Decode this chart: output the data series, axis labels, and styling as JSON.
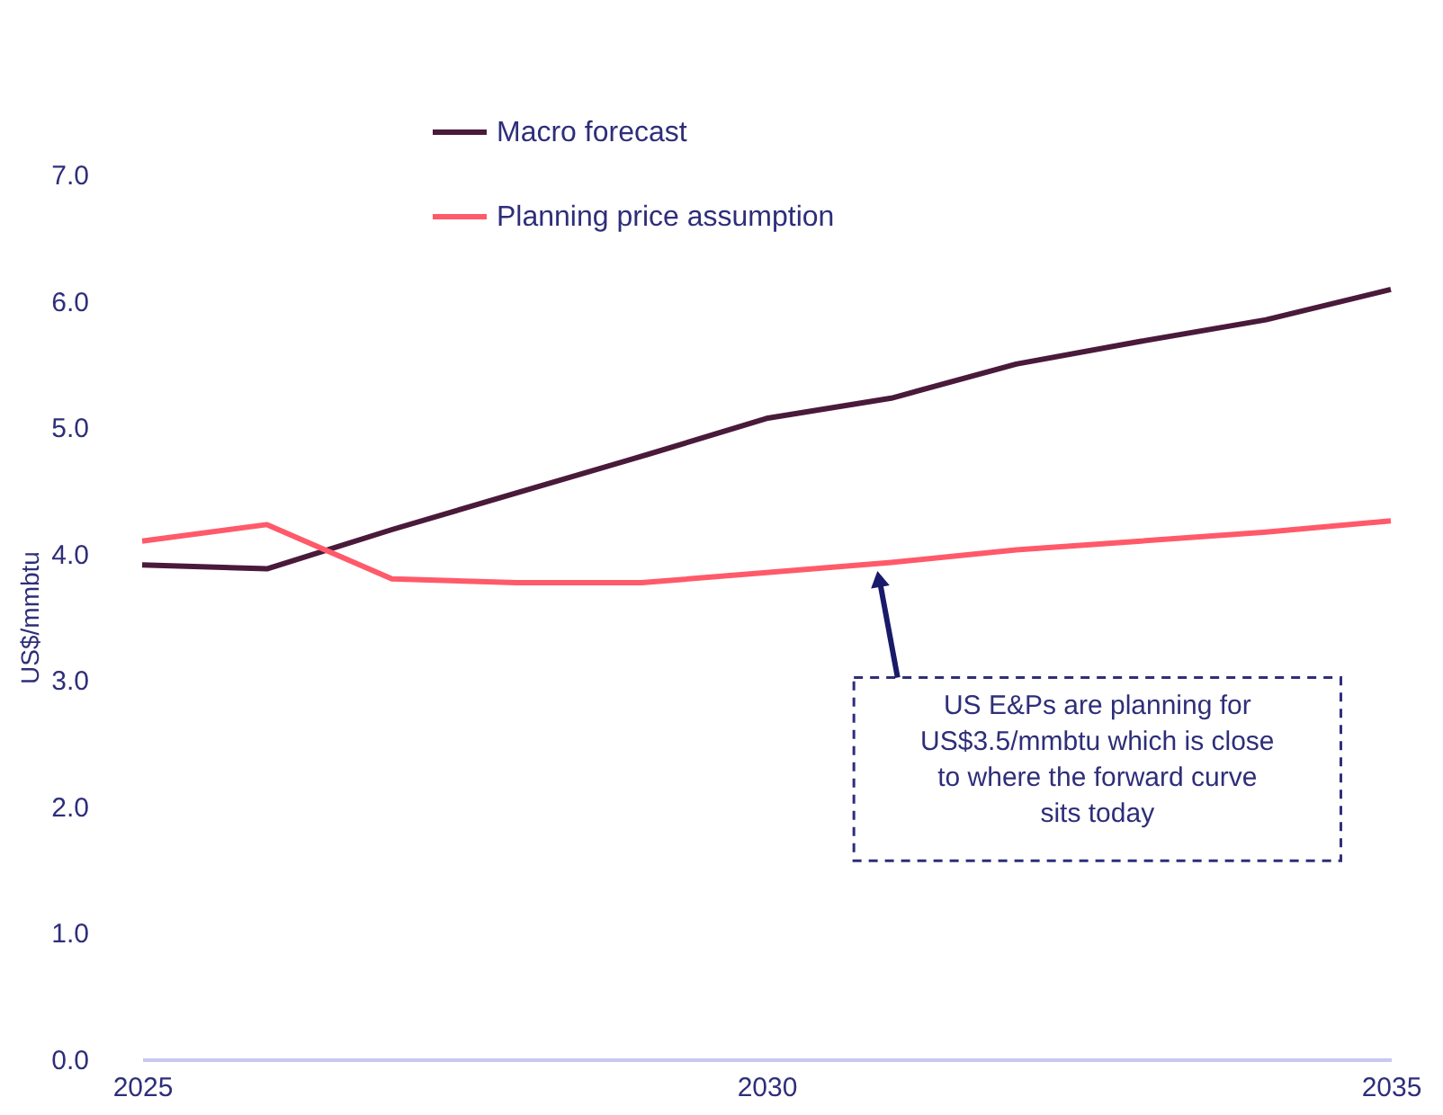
{
  "chart_data": {
    "type": "line",
    "ylabel": "US$/mmbtu",
    "x": [
      2025,
      2026,
      2027,
      2028,
      2029,
      2030,
      2031,
      2032,
      2033,
      2034,
      2035
    ],
    "series": [
      {
        "name": "Macro forecast",
        "color": "#4a1a3a",
        "values": [
          3.91,
          3.88,
          4.19,
          4.48,
          4.77,
          5.07,
          5.23,
          5.5,
          5.68,
          5.85,
          6.09
        ]
      },
      {
        "name": "Planning price assumption",
        "color": "#ff5a6a",
        "values": [
          4.1,
          4.23,
          3.8,
          3.77,
          3.77,
          3.85,
          3.93,
          4.03,
          4.1,
          4.17,
          4.26
        ]
      }
    ],
    "xlim": [
      2025,
      2035
    ],
    "xticks": [
      2025,
      2030,
      2035
    ],
    "ylim": [
      0,
      7
    ],
    "yticks": [
      {
        "value": 0,
        "label": "0.0"
      },
      {
        "value": 1,
        "label": "1.0"
      },
      {
        "value": 2,
        "label": "2.0"
      },
      {
        "value": 3,
        "label": "3.0"
      },
      {
        "value": 4,
        "label": "4.0"
      },
      {
        "value": 5,
        "label": "5.0"
      },
      {
        "value": 6,
        "label": "6.0"
      },
      {
        "value": 7,
        "label": "7.0"
      }
    ],
    "annotations": [
      {
        "text": "US E&Ps are planning for\nUS$3.5/mmbtu which is close\nto where the forward curve\nsits today",
        "x": 2030.9,
        "y": 3.9
      }
    ],
    "grid": false,
    "legend": "top",
    "marker": "none",
    "line_style": "solid"
  }
}
